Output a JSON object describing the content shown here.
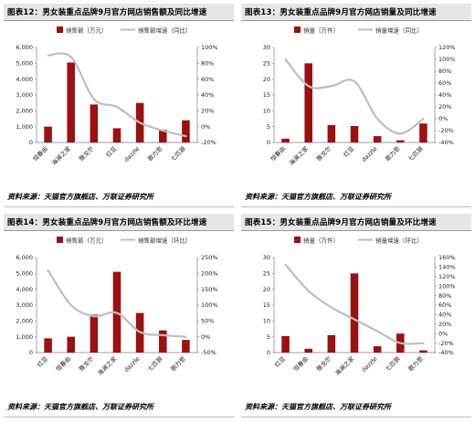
{
  "colors": {
    "bar": "#9b1010",
    "line": "#bdbdbd",
    "axis": "#7f7f7f"
  },
  "chart_data": [
    {
      "type": "bar",
      "title": "图表12：男女装重点品牌9月官方网店销售额及同比增速",
      "source": "资料来源：天猫官方旗舰店、万联证券研究所",
      "legend": [
        "销售额（万元）",
        "销售额增速（同比）"
      ],
      "legend_position": "top",
      "categories": [
        "恒春由",
        "海澜之家",
        "雅戈尔",
        "红豆",
        "dazzle",
        "歌力思",
        "七匹狼"
      ],
      "series": [
        {
          "name": "销售额（万元）",
          "type": "bar",
          "axis": "left",
          "values": [
            1000,
            5050,
            2400,
            900,
            2500,
            800,
            1400
          ]
        },
        {
          "name": "销售额增速（同比）",
          "type": "line",
          "axis": "right",
          "values": [
            90,
            88,
            35,
            25,
            5,
            -5,
            -12
          ]
        }
      ],
      "y_left": {
        "min": 0,
        "max": 6000,
        "ticks": [
          "0",
          "1,000",
          "2,000",
          "3,000",
          "4,000",
          "5,000",
          "6,000"
        ],
        "tick_values": [
          0,
          1000,
          2000,
          3000,
          4000,
          5000,
          6000
        ]
      },
      "y_right": {
        "min": -20,
        "max": 100,
        "ticks": [
          "-20%",
          "0%",
          "20%",
          "40%",
          "60%",
          "80%",
          "100%"
        ],
        "tick_values": [
          -20,
          0,
          20,
          40,
          60,
          80,
          100
        ]
      },
      "grid": false
    },
    {
      "type": "bar",
      "title": "图表13：男女装重点品牌9月官方网店销量及同比增速",
      "source": "资料来源：天猫官方旗舰店、万联证券研究所",
      "legend": [
        "销量（万件）",
        "销量增速（同比）"
      ],
      "legend_position": "top",
      "categories": [
        "恒春由",
        "海澜之家",
        "雅戈尔",
        "红豆",
        "dazzle",
        "歌力思",
        "七匹狼"
      ],
      "series": [
        {
          "name": "销量（万件）",
          "type": "bar",
          "axis": "left",
          "values": [
            1.2,
            25,
            5.5,
            5.2,
            2,
            0.7,
            6
          ]
        },
        {
          "name": "销量增速（同比）",
          "type": "line",
          "axis": "right",
          "values": [
            100,
            55,
            55,
            63,
            0,
            -25,
            0
          ]
        }
      ],
      "y_left": {
        "min": 0,
        "max": 30,
        "ticks": [
          "0",
          "5",
          "10",
          "15",
          "20",
          "25",
          "30"
        ],
        "tick_values": [
          0,
          5,
          10,
          15,
          20,
          25,
          30
        ]
      },
      "y_right": {
        "min": -40,
        "max": 120,
        "ticks": [
          "-40%",
          "-20%",
          "0%",
          "20%",
          "40%",
          "60%",
          "80%",
          "100%",
          "120%"
        ],
        "tick_values": [
          -40,
          -20,
          0,
          20,
          40,
          60,
          80,
          100,
          120
        ]
      },
      "grid": false
    },
    {
      "type": "bar",
      "title": "图表14：男女装重点品牌9月官方网店销售额及环比增速",
      "source": "资料来源：天猫官方旗舰店、万联证券研究所",
      "legend": [
        "销售额（万元）",
        "销售额增速（环比）"
      ],
      "legend_position": "top",
      "categories": [
        "红豆",
        "恒春由",
        "雅戈尔",
        "海澜之家",
        "dazzle",
        "七匹狼",
        "歌力思"
      ],
      "series": [
        {
          "name": "销售额（万元）",
          "type": "bar",
          "axis": "left",
          "values": [
            900,
            1000,
            2400,
            5100,
            2500,
            1400,
            800
          ]
        },
        {
          "name": "销售额增速（环比）",
          "type": "line",
          "axis": "right",
          "values": [
            210,
            100,
            65,
            75,
            15,
            5,
            0
          ]
        }
      ],
      "y_left": {
        "min": 0,
        "max": 6000,
        "ticks": [
          "0",
          "1,000",
          "2,000",
          "3,000",
          "4,000",
          "5,000",
          "6,000"
        ],
        "tick_values": [
          0,
          1000,
          2000,
          3000,
          4000,
          5000,
          6000
        ]
      },
      "y_right": {
        "min": -50,
        "max": 250,
        "ticks": [
          "-50%",
          "0%",
          "50%",
          "100%",
          "150%",
          "200%",
          "250%"
        ],
        "tick_values": [
          -50,
          0,
          50,
          100,
          150,
          200,
          250
        ]
      },
      "grid": false
    },
    {
      "type": "bar",
      "title": "图表15：男女装重点品牌9月官方网店销量及环比增速",
      "source": "资料来源：天猫官方旗舰店、万联证券研究所",
      "legend": [
        "销量（万件）",
        "销量增速（环比）"
      ],
      "legend_position": "top",
      "categories": [
        "红豆",
        "恒春由",
        "雅戈尔",
        "海澜之家",
        "dazzle",
        "七匹狼",
        "歌力思"
      ],
      "series": [
        {
          "name": "销量（万件）",
          "type": "bar",
          "axis": "left",
          "values": [
            5.2,
            1.2,
            5.5,
            25,
            2,
            6,
            0.7
          ]
        },
        {
          "name": "销量增速（环比）",
          "type": "line",
          "axis": "right",
          "values": [
            145,
            90,
            55,
            30,
            5,
            -20,
            -20
          ]
        }
      ],
      "y_left": {
        "min": 0,
        "max": 30,
        "ticks": [
          "0",
          "5",
          "10",
          "15",
          "20",
          "25",
          "30"
        ],
        "tick_values": [
          0,
          5,
          10,
          15,
          20,
          25,
          30
        ]
      },
      "y_right": {
        "min": -40,
        "max": 160,
        "ticks": [
          "-40%",
          "-20%",
          "0%",
          "20%",
          "40%",
          "60%",
          "80%",
          "100%",
          "120%",
          "140%",
          "160%"
        ],
        "tick_values": [
          -40,
          -20,
          0,
          20,
          40,
          60,
          80,
          100,
          120,
          140,
          160
        ]
      },
      "grid": false
    }
  ]
}
